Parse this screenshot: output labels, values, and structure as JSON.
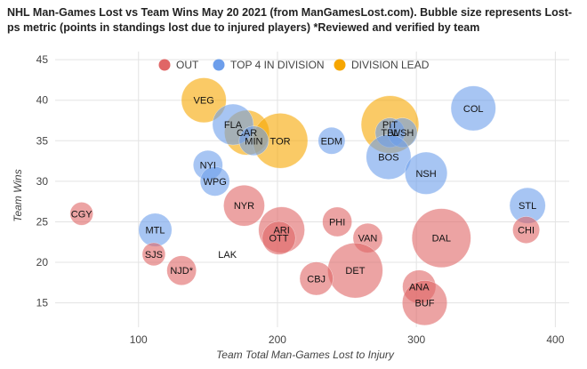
{
  "chart_data": {
    "type": "scatter",
    "title": "NHL Man-Games Lost vs Team Wins May 20 2021 (from ManGamesLost.com). Bubble size represents Lost-ps metric (points in standings lost due to injured players) *Reviewed and verified by team",
    "xlabel": "Team Total Man-Games Lost to Injury",
    "ylabel": "Team Wins",
    "xlim": [
      40,
      410
    ],
    "ylim": [
      12,
      46
    ],
    "x_ticks": [
      "100",
      "200",
      "300",
      "400"
    ],
    "y_ticks": [
      "15",
      "20",
      "25",
      "30",
      "35",
      "40",
      "45"
    ],
    "grid": true,
    "legend_position": "top",
    "colors": {
      "OUT": "#e06666",
      "TOP 4 IN DIVISION": "#6d9eeb",
      "DIVISION LEAD": "#f6a600"
    },
    "legend": [
      {
        "name": "OUT",
        "color": "#e06666"
      },
      {
        "name": "TOP 4 IN DIVISION",
        "color": "#6d9eeb"
      },
      {
        "name": "DIVISION LEAD",
        "color": "#f6a600"
      }
    ],
    "points": [
      {
        "team": "VEG",
        "x": 147,
        "y": 40,
        "size": 3.5,
        "group": "DIVISION LEAD"
      },
      {
        "team": "CAR",
        "x": 178,
        "y": 36,
        "size": 3.5,
        "group": "DIVISION LEAD"
      },
      {
        "team": "TOR",
        "x": 202,
        "y": 35,
        "size": 4.3,
        "group": "DIVISION LEAD"
      },
      {
        "team": "PIT",
        "x": 281,
        "y": 37,
        "size": 4.5,
        "group": "DIVISION LEAD"
      },
      {
        "team": "FLA",
        "x": 168,
        "y": 37,
        "size": 3.2,
        "group": "TOP 4 IN DIVISION"
      },
      {
        "team": "MIN",
        "x": 183,
        "y": 35,
        "size": 2.3,
        "group": "TOP 4 IN DIVISION"
      },
      {
        "team": "COL",
        "x": 341,
        "y": 39,
        "size": 3.5,
        "group": "TOP 4 IN DIVISION"
      },
      {
        "team": "TBL",
        "x": 281,
        "y": 36,
        "size": 2.3,
        "group": "TOP 4 IN DIVISION"
      },
      {
        "team": "WSH",
        "x": 290,
        "y": 36,
        "size": 2.3,
        "group": "TOP 4 IN DIVISION"
      },
      {
        "team": "EDM",
        "x": 239,
        "y": 35,
        "size": 2.1,
        "group": "TOP 4 IN DIVISION"
      },
      {
        "team": "BOS",
        "x": 280,
        "y": 33,
        "size": 3.5,
        "group": "TOP 4 IN DIVISION"
      },
      {
        "team": "NYI",
        "x": 150,
        "y": 32,
        "size": 2.3,
        "group": "TOP 4 IN DIVISION"
      },
      {
        "team": "NSH",
        "x": 307,
        "y": 31,
        "size": 3.3,
        "group": "TOP 4 IN DIVISION"
      },
      {
        "team": "WPG",
        "x": 155,
        "y": 30,
        "size": 2.3,
        "group": "TOP 4 IN DIVISION"
      },
      {
        "team": "STL",
        "x": 380,
        "y": 27,
        "size": 2.8,
        "group": "TOP 4 IN DIVISION"
      },
      {
        "team": "MTL",
        "x": 112,
        "y": 24,
        "size": 2.6,
        "group": "TOP 4 IN DIVISION"
      },
      {
        "team": "CGY",
        "x": 59,
        "y": 26,
        "size": 1.8,
        "group": "OUT"
      },
      {
        "team": "NYR",
        "x": 176,
        "y": 27,
        "size": 3.2,
        "group": "OUT"
      },
      {
        "team": "ARI",
        "x": 203,
        "y": 24,
        "size": 3.6,
        "group": "OUT"
      },
      {
        "team": "OTT",
        "x": 201,
        "y": 23,
        "size": 2.6,
        "group": "OUT"
      },
      {
        "team": "PHI",
        "x": 243,
        "y": 25,
        "size": 2.3,
        "group": "OUT"
      },
      {
        "team": "VAN",
        "x": 265,
        "y": 23,
        "size": 2.3,
        "group": "OUT"
      },
      {
        "team": "DAL",
        "x": 318,
        "y": 23,
        "size": 4.6,
        "group": "OUT"
      },
      {
        "team": "CHI",
        "x": 379,
        "y": 24,
        "size": 2.1,
        "group": "OUT"
      },
      {
        "team": "SJS",
        "x": 111,
        "y": 21,
        "size": 1.8,
        "group": "OUT"
      },
      {
        "team": "LAK",
        "x": 164,
        "y": 21,
        "size": 0,
        "group": "OUT"
      },
      {
        "team": "NJD*",
        "x": 131,
        "y": 19,
        "size": 2.3,
        "group": "OUT"
      },
      {
        "team": "DET",
        "x": 256,
        "y": 19,
        "size": 4.3,
        "group": "OUT"
      },
      {
        "team": "CBJ",
        "x": 228,
        "y": 18,
        "size": 2.6,
        "group": "OUT"
      },
      {
        "team": "ANA",
        "x": 302,
        "y": 17,
        "size": 2.6,
        "group": "OUT"
      },
      {
        "team": "BUF",
        "x": 306,
        "y": 15,
        "size": 3.5,
        "group": "OUT"
      }
    ]
  }
}
